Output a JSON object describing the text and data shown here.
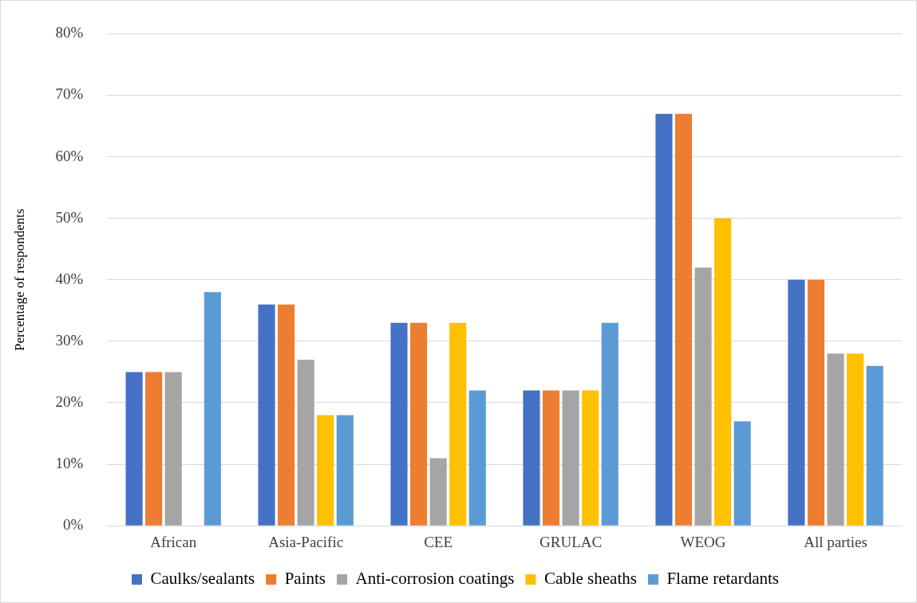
{
  "chart_data": {
    "type": "bar",
    "ylabel": "Percentage of respondents",
    "categories": [
      "African",
      "Asia-Pacific",
      "CEE",
      "GRULAC",
      "WEOG",
      "All parties"
    ],
    "series": [
      {
        "name": "Caulks/sealants",
        "color": "#4472c4",
        "values": [
          25,
          36,
          33,
          22,
          67,
          40
        ]
      },
      {
        "name": "Paints",
        "color": "#ed7d31",
        "values": [
          25,
          36,
          33,
          22,
          67,
          40
        ]
      },
      {
        "name": "Anti-corrosion coatings",
        "color": "#a5a5a5",
        "values": [
          25,
          27,
          11,
          22,
          42,
          28
        ]
      },
      {
        "name": "Cable sheaths",
        "color": "#ffc000",
        "values": [
          0,
          18,
          33,
          22,
          50,
          28
        ]
      },
      {
        "name": "Flame retardants",
        "color": "#5b9bd5",
        "values": [
          38,
          18,
          22,
          33,
          17,
          26
        ]
      }
    ],
    "ylim": [
      0,
      80
    ],
    "yticks": [
      {
        "value": 0,
        "label": "0%"
      },
      {
        "value": 10,
        "label": "10%"
      },
      {
        "value": 20,
        "label": "20%"
      },
      {
        "value": 30,
        "label": "30%"
      },
      {
        "value": 40,
        "label": "40%"
      },
      {
        "value": 50,
        "label": "50%"
      },
      {
        "value": 60,
        "label": "60%"
      },
      {
        "value": 70,
        "label": "70%"
      },
      {
        "value": 80,
        "label": "80%"
      }
    ],
    "grid": "y",
    "legend": "bottom"
  }
}
